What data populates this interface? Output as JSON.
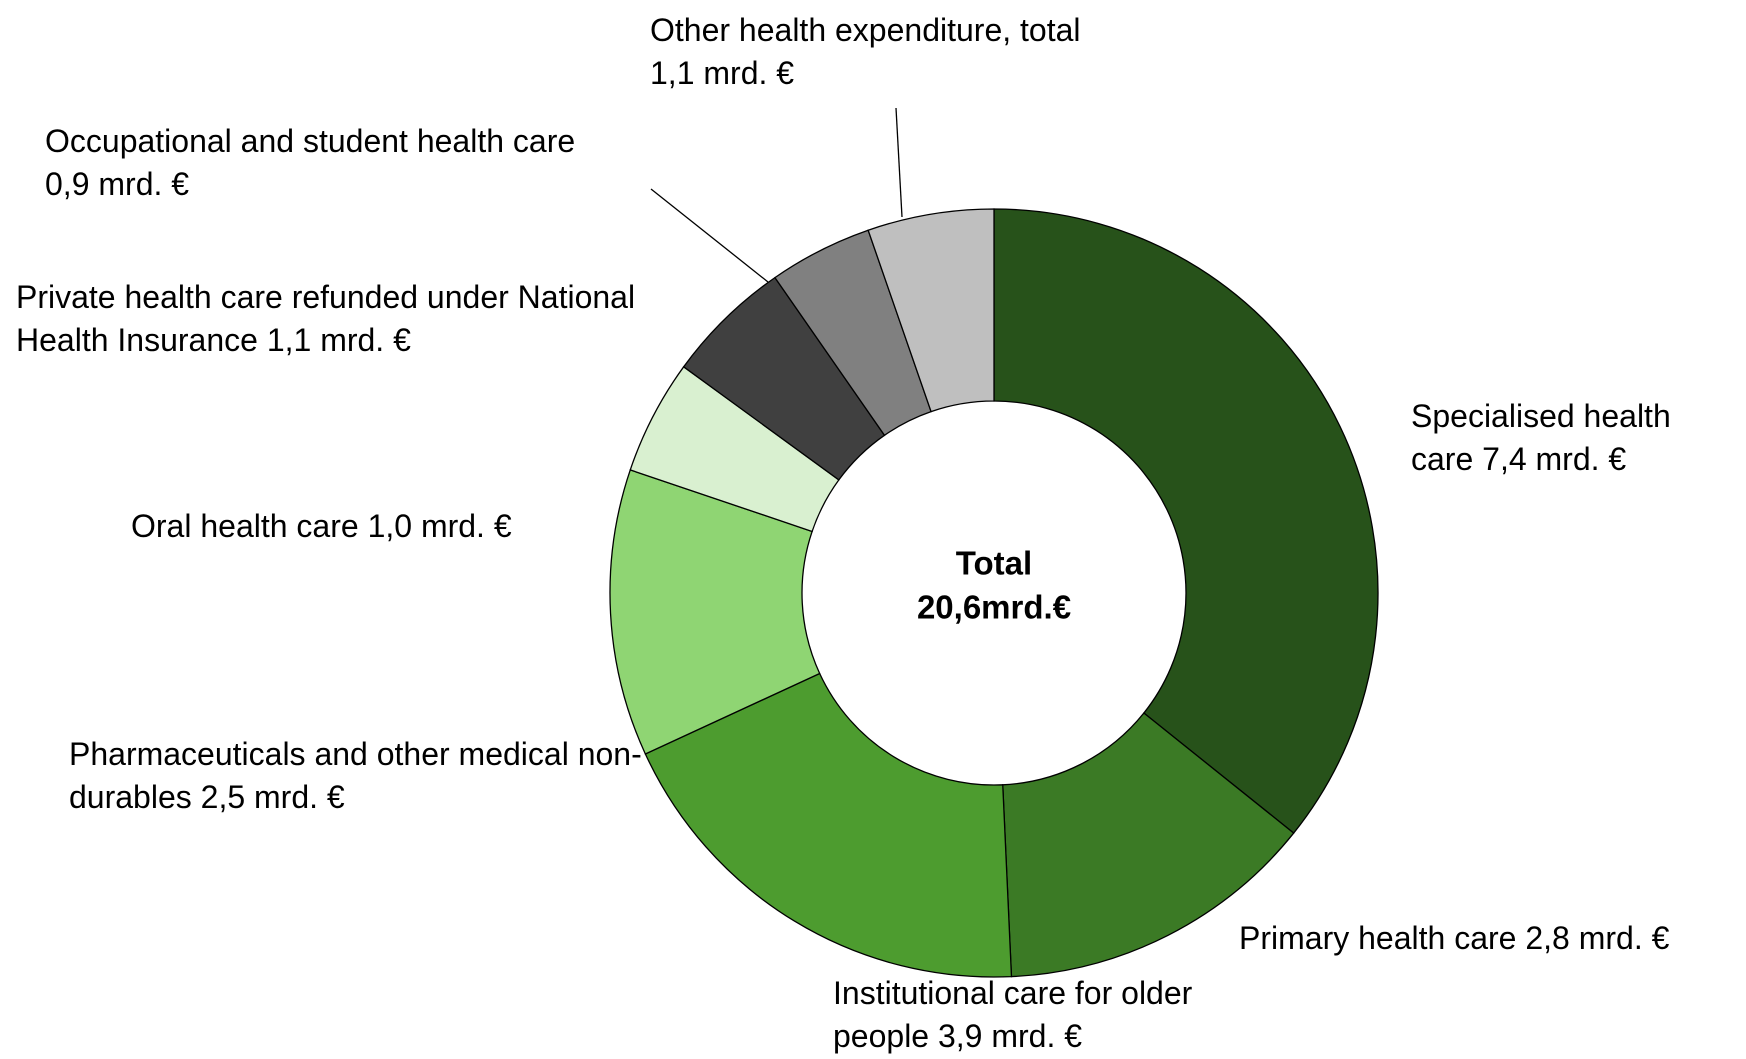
{
  "chart_data": {
    "type": "donut",
    "center_title": "Total",
    "center_label": "20,6mrd.€",
    "categories": [
      "Specialised health care",
      "Primary health care",
      "Institutional care for older people",
      "Pharmaceuticals and other medical non-durables",
      "Oral health care",
      "Private health care refunded under National Health Insurance",
      "Occupational and student health care",
      "Other health expenditure, total"
    ],
    "values": [
      7.4,
      2.8,
      3.9,
      2.5,
      1.0,
      1.1,
      0.9,
      1.1
    ],
    "value_labels": [
      "7,4 mrd. €",
      "2,8 mrd. €",
      "3,9 mrd. €",
      "2,5 mrd. €",
      "1,0 mrd. €",
      "1,1 mrd. €",
      "0,9 mrd. €",
      "1,1 mrd. €"
    ],
    "colors": [
      "#27521a",
      "#3b7a25",
      "#4d9c2f",
      "#8fd573",
      "#d9f0d0",
      "#404040",
      "#808080",
      "#bfbfbf"
    ]
  }
}
